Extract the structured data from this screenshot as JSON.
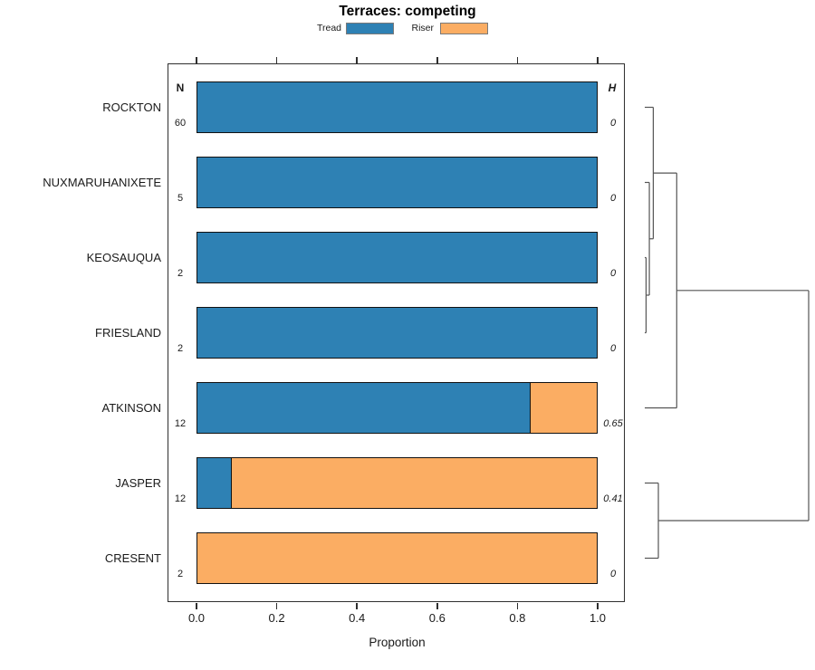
{
  "chart_data": {
    "type": "bar",
    "orientation": "horizontal",
    "stacked": true,
    "title": "Terraces: competing",
    "xlabel": "Proportion",
    "xlim": [
      0.0,
      1.0
    ],
    "x_ticks": [
      "0.0",
      "0.2",
      "0.4",
      "0.6",
      "0.8",
      "1.0"
    ],
    "grid": false,
    "legend_position": "top",
    "legend": [
      {
        "name": "Tread",
        "color": "#2E81B4"
      },
      {
        "name": "Riser",
        "color": "#FBAD63"
      }
    ],
    "left_column_header": "N",
    "right_column_header": "H",
    "rows": [
      {
        "label": "ROCKTON",
        "n": "60",
        "h": "0",
        "tread": 1.0,
        "riser": 0.0
      },
      {
        "label": "NUXMARUHANIXETE",
        "n": "5",
        "h": "0",
        "tread": 1.0,
        "riser": 0.0
      },
      {
        "label": "KEOSAUQUA",
        "n": "2",
        "h": "0",
        "tread": 1.0,
        "riser": 0.0
      },
      {
        "label": "FRIESLAND",
        "n": "2",
        "h": "0",
        "tread": 1.0,
        "riser": 0.0
      },
      {
        "label": "ATKINSON",
        "n": "12",
        "h": "0.65",
        "tread": 0.8333,
        "riser": 0.1667
      },
      {
        "label": "JASPER",
        "n": "12",
        "h": "0.41",
        "tread": 0.0833,
        "riser": 0.9167
      },
      {
        "label": "CRESENT",
        "n": "2",
        "h": "0",
        "tread": 0.0,
        "riser": 1.0
      }
    ],
    "dendrogram": {
      "leaf_order": [
        "ROCKTON",
        "NUXMARUHANIXETE",
        "KEOSAUQUA",
        "FRIESLAND",
        "ATKINSON",
        "JASPER",
        "CRESENT"
      ],
      "merges": [
        {
          "id": "m1",
          "children": [
            "KEOSAUQUA",
            "FRIESLAND"
          ],
          "height": 0.008
        },
        {
          "id": "m2",
          "children": [
            "NUXMARUHANIXETE",
            "m1"
          ],
          "height": 0.028
        },
        {
          "id": "m3",
          "children": [
            "ROCKTON",
            "m2"
          ],
          "height": 0.052
        },
        {
          "id": "m4",
          "children": [
            "m3",
            "ATKINSON"
          ],
          "height": 0.195
        },
        {
          "id": "m5",
          "children": [
            "JASPER",
            "CRESENT"
          ],
          "height": 0.083
        },
        {
          "id": "root",
          "children": [
            "m4",
            "m5"
          ],
          "height": 1.0
        }
      ]
    }
  }
}
